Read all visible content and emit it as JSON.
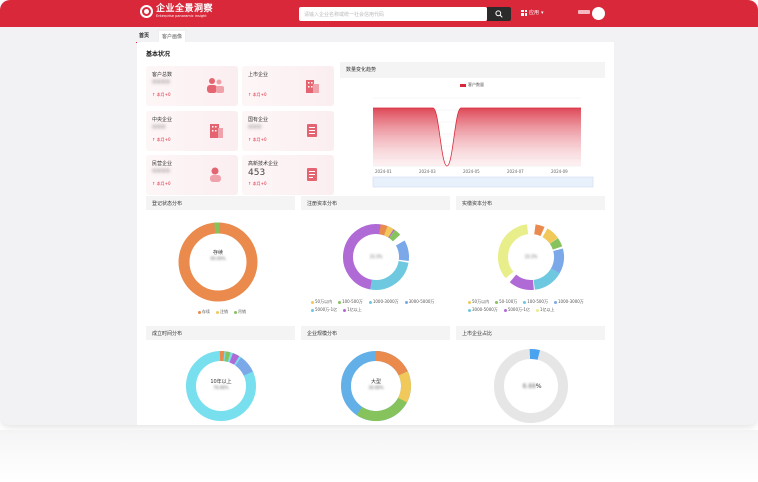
{
  "header": {
    "logo_cn": "企业全景洞察",
    "logo_en": "Enterprise panoramic insight",
    "search_placeholder": "请输入企业名称或统一社会信用代码",
    "app_menu_label": "应用"
  },
  "tabs": [
    {
      "label": "首页",
      "active": true
    },
    {
      "label": "客户画像",
      "active": false
    }
  ],
  "overview": {
    "title": "基本状况",
    "cards": [
      {
        "label": "客户总数",
        "value": "****",
        "trend": "本月+0",
        "blurred": true
      },
      {
        "label": "上市企业",
        "value": "",
        "trend": "本月+0",
        "blurred": true
      },
      {
        "label": "中央企业",
        "value": "***",
        "trend": "本月+0",
        "blurred": true
      },
      {
        "label": "国有企业",
        "value": "***",
        "trend": "本月+0",
        "blurred": true
      },
      {
        "label": "民营企业",
        "value": "****",
        "trend": "本月+0",
        "blurred": true
      },
      {
        "label": "高新技术企业",
        "value": "453",
        "trend": "本月+0",
        "blurred": false
      }
    ]
  },
  "trend_chart": {
    "title": "数量变化趋势",
    "legend": "客户数量",
    "accent": "#d8283a"
  },
  "panels": {
    "p1": {
      "title": "登记状态分布",
      "center": "存续",
      "legend": [
        "存续",
        "注销",
        "吊销"
      ]
    },
    "p2": {
      "title": "注册资本分布",
      "center": "",
      "legend": [
        "50万以内",
        "100-500万",
        "1000-3000万",
        "3000-5000万",
        "5000万-1亿",
        "1亿以上"
      ]
    },
    "p3": {
      "title": "实缴资本分布",
      "center": "",
      "legend": [
        "50万以内",
        "50-100万",
        "100-500万",
        "1000-3000万",
        "3000-5000万",
        "5000万-1亿",
        "1亿以上"
      ]
    },
    "p4": {
      "title": "成立时间分布",
      "center": "10年以上"
    },
    "p5": {
      "title": "企业规模分布",
      "center": "大型"
    },
    "p6": {
      "title": "上市企业占比",
      "center": "%"
    }
  },
  "chart_data": {
    "type": "area",
    "title": "数量变化趋势",
    "x": [
      "2024-01",
      "2024-03",
      "2024-05",
      "2024-07",
      "2024-09"
    ],
    "series": [
      {
        "name": "客户数量"
      }
    ],
    "xlabel": "",
    "ylabel": ""
  }
}
